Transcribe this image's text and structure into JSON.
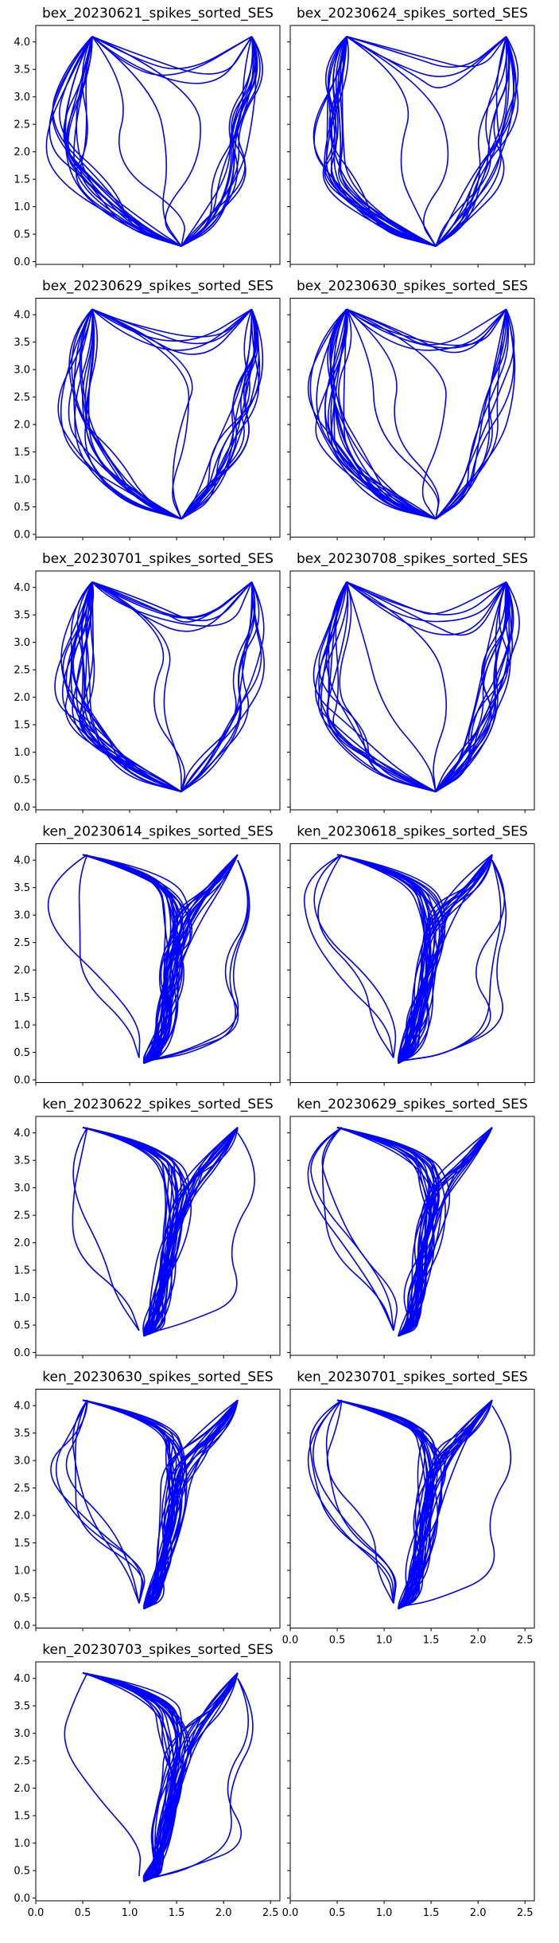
{
  "figure": {
    "line_color": "#0000ff",
    "columns": 2,
    "rows": 7
  },
  "chart_data": [
    {
      "type": "line",
      "title": "bex_20230621_spikes_sorted_SES",
      "arena": "square",
      "xlim": [
        0,
        2.6
      ],
      "ylim": [
        -0.05,
        4.3
      ],
      "yticks": [
        "0.0",
        "0.5",
        "1.0",
        "1.5",
        "2.0",
        "2.5",
        "3.0",
        "3.5",
        "4.0"
      ],
      "xticks": []
    },
    {
      "type": "line",
      "title": "bex_20230624_spikes_sorted_SES",
      "arena": "square",
      "xlim": [
        0,
        2.6
      ],
      "ylim": [
        -0.05,
        4.3
      ],
      "yticks": [],
      "xticks": []
    },
    {
      "type": "line",
      "title": "bex_20230629_spikes_sorted_SES",
      "arena": "square",
      "xlim": [
        0,
        2.6
      ],
      "ylim": [
        -0.05,
        4.3
      ],
      "yticks": [
        "0.0",
        "0.5",
        "1.0",
        "1.5",
        "2.0",
        "2.5",
        "3.0",
        "3.5",
        "4.0"
      ],
      "xticks": []
    },
    {
      "type": "line",
      "title": "bex_20230630_spikes_sorted_SES",
      "arena": "square",
      "xlim": [
        0,
        2.6
      ],
      "ylim": [
        -0.05,
        4.3
      ],
      "yticks": [],
      "xticks": []
    },
    {
      "type": "line",
      "title": "bex_20230701_spikes_sorted_SES",
      "arena": "square",
      "xlim": [
        0,
        2.6
      ],
      "ylim": [
        -0.05,
        4.3
      ],
      "yticks": [
        "0.0",
        "0.5",
        "1.0",
        "1.5",
        "2.0",
        "2.5",
        "3.0",
        "3.5",
        "4.0"
      ],
      "xticks": []
    },
    {
      "type": "line",
      "title": "bex_20230708_spikes_sorted_SES",
      "arena": "square",
      "xlim": [
        0,
        2.6
      ],
      "ylim": [
        -0.05,
        4.3
      ],
      "yticks": [],
      "xticks": []
    },
    {
      "type": "line",
      "title": "ken_20230614_spikes_sorted_SES",
      "arena": "y",
      "xlim": [
        0,
        2.6
      ],
      "ylim": [
        -0.05,
        4.3
      ],
      "yticks": [
        "0.0",
        "0.5",
        "1.0",
        "1.5",
        "2.0",
        "2.5",
        "3.0",
        "3.5",
        "4.0"
      ],
      "xticks": []
    },
    {
      "type": "line",
      "title": "ken_20230618_spikes_sorted_SES",
      "arena": "y",
      "xlim": [
        0,
        2.6
      ],
      "ylim": [
        -0.05,
        4.3
      ],
      "yticks": [],
      "xticks": []
    },
    {
      "type": "line",
      "title": "ken_20230622_spikes_sorted_SES",
      "arena": "y",
      "xlim": [
        0,
        2.6
      ],
      "ylim": [
        -0.05,
        4.3
      ],
      "yticks": [
        "0.0",
        "0.5",
        "1.0",
        "1.5",
        "2.0",
        "2.5",
        "3.0",
        "3.5",
        "4.0"
      ],
      "xticks": []
    },
    {
      "type": "line",
      "title": "ken_20230629_spikes_sorted_SES",
      "arena": "y",
      "xlim": [
        0,
        2.6
      ],
      "ylim": [
        -0.05,
        4.3
      ],
      "yticks": [],
      "xticks": []
    },
    {
      "type": "line",
      "title": "ken_20230630_spikes_sorted_SES",
      "arena": "y",
      "xlim": [
        0,
        2.6
      ],
      "ylim": [
        -0.05,
        4.3
      ],
      "yticks": [
        "0.0",
        "0.5",
        "1.0",
        "1.5",
        "2.0",
        "2.5",
        "3.0",
        "3.5",
        "4.0"
      ],
      "xticks": []
    },
    {
      "type": "line",
      "title": "ken_20230701_spikes_sorted_SES",
      "arena": "y",
      "xlim": [
        0,
        2.6
      ],
      "ylim": [
        -0.05,
        4.3
      ],
      "yticks": [],
      "xticks": [
        "0.0",
        "0.5",
        "1.0",
        "1.5",
        "2.0",
        "2.5"
      ]
    },
    {
      "type": "line",
      "title": "ken_20230703_spikes_sorted_SES",
      "arena": "y",
      "xlim": [
        0,
        2.6
      ],
      "ylim": [
        -0.05,
        4.3
      ],
      "yticks": [
        "0.0",
        "0.5",
        "1.0",
        "1.5",
        "2.0",
        "2.5",
        "3.0",
        "3.5",
        "4.0"
      ],
      "xticks": [
        "0.0",
        "0.5",
        "1.0",
        "1.5",
        "2.0",
        "2.5"
      ]
    },
    {
      "type": "empty",
      "title": "",
      "arena": "none",
      "xlim": [
        0,
        2.6
      ],
      "ylim": [
        -0.05,
        4.3
      ],
      "yticks": [],
      "xticks": [
        "0.0",
        "0.5",
        "1.0",
        "1.5",
        "2.0",
        "2.5"
      ]
    }
  ]
}
